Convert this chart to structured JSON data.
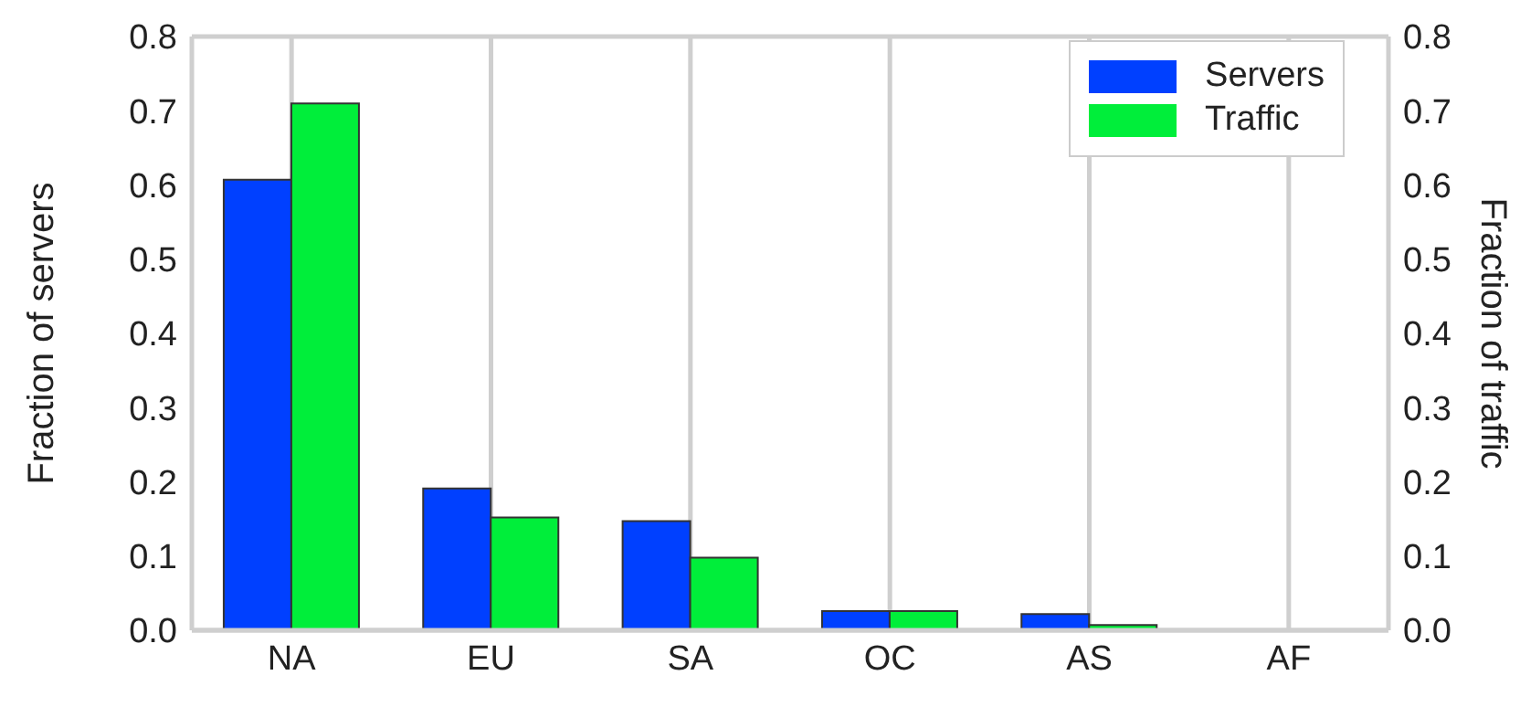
{
  "chart_data": {
    "type": "bar",
    "ylabel": "Fraction of servers",
    "y2label": "Fraction of traffic",
    "categories": [
      "NA",
      "EU",
      "SA",
      "OC",
      "AS",
      "AF"
    ],
    "series": [
      {
        "name": "Servers",
        "color": "#0040ff",
        "values": [
          0.607,
          0.191,
          0.147,
          0.026,
          0.022,
          0
        ]
      },
      {
        "name": "Traffic",
        "color": "#00ee3a",
        "axis": "y2",
        "values": [
          0.71,
          0.152,
          0.098,
          0.026,
          0.007,
          0
        ]
      }
    ],
    "ylim": [
      0,
      0.8
    ],
    "yticks": [
      {
        "value": 0,
        "label": "0.0"
      },
      0.1,
      0.2,
      0.3,
      0.4,
      0.5,
      0.6,
      0.7,
      0.8
    ],
    "y2lim": [
      0,
      0.8
    ],
    "y2ticks": [
      {
        "value": 0,
        "label": "0.0"
      },
      0.1,
      0.2,
      0.3,
      0.4,
      0.5,
      0.6,
      0.7,
      0.8
    ],
    "grid": true,
    "legend": "top right"
  }
}
